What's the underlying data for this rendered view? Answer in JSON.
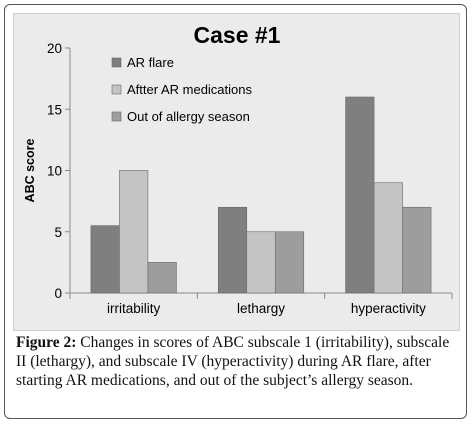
{
  "chart_data": {
    "type": "bar",
    "title": "Case #1",
    "xlabel": "",
    "ylabel": "ABC score",
    "ylim": [
      0,
      20
    ],
    "yticks": [
      0,
      5,
      10,
      15,
      20
    ],
    "categories": [
      "irritability",
      "lethargy",
      "hyperactivity"
    ],
    "series": [
      {
        "name": "AR flare",
        "values": [
          5.5,
          7,
          16
        ],
        "color": "#7f7f7f"
      },
      {
        "name": "Aftter AR medications",
        "values": [
          10,
          5,
          9
        ],
        "color": "#c4c4c4"
      },
      {
        "name": "Out of allergy season",
        "values": [
          2.5,
          5,
          7
        ],
        "color": "#9d9d9d"
      }
    ],
    "legend_position": "top-left inside plot",
    "grid": false
  },
  "caption": {
    "label": "Figure 2:",
    "text": " Changes in scores of ABC subscale 1 (irritability), subscale II (lethargy), and subscale IV (hyperactivity) during AR flare, after starting AR medications, and out of the subject’s allergy season."
  }
}
